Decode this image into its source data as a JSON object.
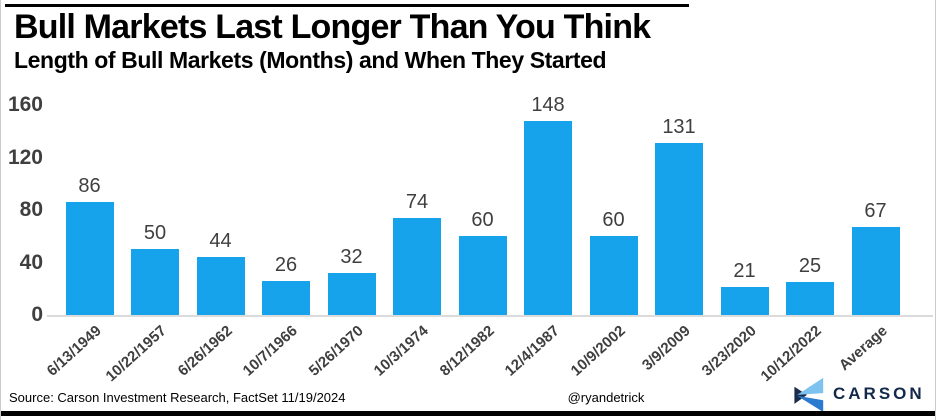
{
  "header": {
    "title": "Bull Markets Last Longer Than You Think",
    "subtitle": "Length of Bull Markets (Months) and When They Started"
  },
  "chart_data": {
    "type": "bar",
    "title": "Bull Markets Last Longer Than You Think",
    "subtitle": "Length of Bull Markets (Months) and When They Started",
    "categories": [
      "6/13/1949",
      "10/22/1957",
      "6/26/1962",
      "10/7/1966",
      "5/26/1970",
      "10/3/1974",
      "8/12/1982",
      "12/4/1987",
      "10/9/2002",
      "3/9/2009",
      "3/23/2020",
      "10/12/2022",
      "Average"
    ],
    "values": [
      86,
      50,
      44,
      26,
      32,
      74,
      60,
      148,
      60,
      131,
      21,
      25,
      67
    ],
    "xlabel": "",
    "ylabel": "",
    "ylim": [
      0,
      160
    ],
    "yticks": [
      0,
      40,
      80,
      120,
      160
    ],
    "grid": false,
    "legend": false,
    "bar_labels_shown": true
  },
  "footer": {
    "source": "Source: Carson Investment Research, FactSet 11/19/2024",
    "handle": "@ryandetrick",
    "logo_text": "CARSON"
  },
  "colors": {
    "bar": "#16a3ec",
    "label": "#3f3f3f",
    "axis_line": "#dbdbdb",
    "navy": "#13294b",
    "logo_light": "#7ec3f0",
    "logo_mid": "#2b7cd0",
    "logo_dark": "#1b2b4c",
    "rule": "#000000"
  }
}
